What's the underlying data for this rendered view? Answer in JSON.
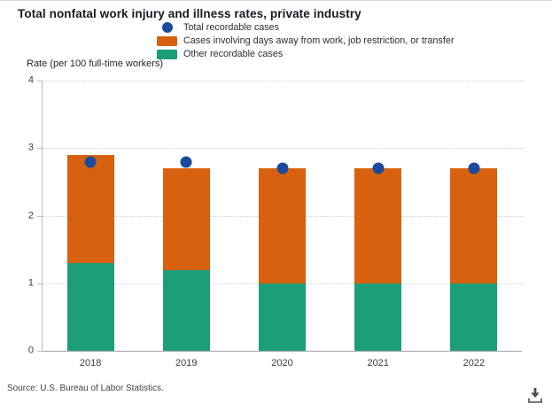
{
  "header": {
    "title": "Total nonfatal work injury and illness rates, private industry"
  },
  "legend": {
    "items": [
      {
        "label": "Total recordable cases",
        "marker": "circle",
        "color": "#1b4a9e"
      },
      {
        "label": "Cases involving days away from work, job restriction, or transfer",
        "marker": "square",
        "color": "#d7610e"
      },
      {
        "label": "Other recordable cases",
        "marker": "square",
        "color": "#1b9e77"
      }
    ]
  },
  "axis": {
    "y_title": "Rate (per 100 full-time workers)"
  },
  "footer": {
    "source": "Source: U.S. Bureau of Labor Statistics.",
    "download_icon": "download-icon"
  },
  "colors": {
    "total_recordable_dot": "#1b4a9e",
    "dart_bar": "#d7610e",
    "other_bar": "#1b9e77",
    "gridline": "#cfcfd7",
    "axis_line": "#9fa3aa",
    "icon": "#4d4d4d"
  },
  "chart_data": {
    "type": "bar",
    "stacked": true,
    "title": "Total nonfatal work injury and illness rates, private industry",
    "ylabel": "Rate (per 100 full-time workers)",
    "xlabel": "",
    "categories": [
      "2018",
      "2019",
      "2020",
      "2021",
      "2022"
    ],
    "series": [
      {
        "name": "Other recordable cases",
        "type": "bar",
        "color": "#1b9e77",
        "values": [
          1.3,
          1.2,
          1.0,
          1.0,
          1.0
        ]
      },
      {
        "name": "Cases involving days away from work, job restriction, or transfer",
        "type": "bar",
        "color": "#d7610e",
        "values": [
          1.6,
          1.5,
          1.7,
          1.7,
          1.7
        ]
      },
      {
        "name": "Total recordable cases",
        "type": "scatter",
        "color": "#1b4a9e",
        "values": [
          2.8,
          2.8,
          2.7,
          2.7,
          2.7
        ]
      }
    ],
    "ylim": [
      0,
      4
    ],
    "yticks": [
      0,
      1,
      2,
      3,
      4
    ],
    "grid": "horizontal-dotted",
    "legend_position": "top"
  }
}
